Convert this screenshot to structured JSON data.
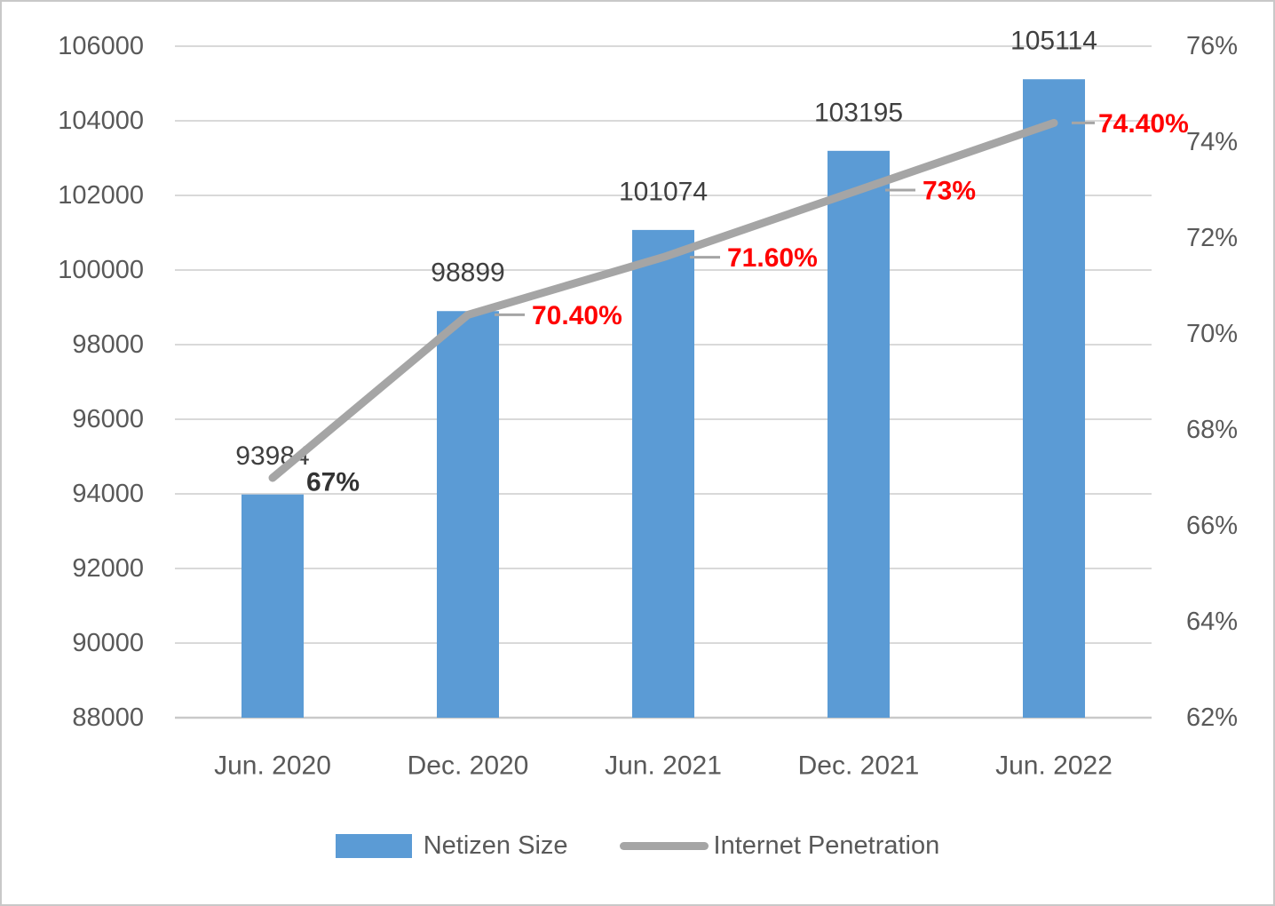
{
  "chart_data": {
    "type": "combo-bar-line",
    "title": "",
    "categories": [
      "Jun. 2020",
      "Dec. 2020",
      "Jun. 2021",
      "Dec. 2021",
      "Jun. 2022"
    ],
    "series": [
      {
        "name": "Netizen Size",
        "type": "bar",
        "axis": "left",
        "color": "#5b9bd5",
        "values": [
          93984,
          98899,
          101074,
          103195,
          105114
        ],
        "data_labels": [
          "93984",
          "98899",
          "101074",
          "103195",
          "105114"
        ],
        "data_label_color": "#3f3f3f"
      },
      {
        "name": "Internet Penetration",
        "type": "line",
        "axis": "right",
        "color": "#a5a5a5",
        "values": [
          67,
          70.4,
          71.6,
          73,
          74.4
        ],
        "data_labels": [
          "67%",
          "70.40%",
          "71.60%",
          "73%",
          "74.40%"
        ],
        "data_label_color": "#ff0000",
        "first_label_color": "#333333"
      }
    ],
    "left_axis": {
      "min": 88000,
      "max": 106000,
      "step": 2000,
      "tick_labels": [
        "106000",
        "104000",
        "102000",
        "100000",
        "98000",
        "96000",
        "94000",
        "92000",
        "90000",
        "88000"
      ]
    },
    "right_axis": {
      "min": 62,
      "max": 76,
      "step": 2,
      "tick_labels": [
        "76%",
        "74%",
        "72%",
        "70%",
        "68%",
        "66%",
        "64%",
        "62%"
      ]
    },
    "grid": "horizontal",
    "legend_position": "bottom",
    "colors": {
      "grid": "#d9d9d9",
      "axis_line": "#c9c9c9",
      "tick_text": "#595959",
      "background": "#ffffff",
      "border": "#c8c8c8"
    }
  },
  "legend": {
    "items": [
      {
        "label": "Netizen Size",
        "swatch": "bar",
        "color": "#5b9bd5"
      },
      {
        "label": "Internet Penetration",
        "swatch": "line",
        "color": "#a5a5a5"
      }
    ]
  }
}
